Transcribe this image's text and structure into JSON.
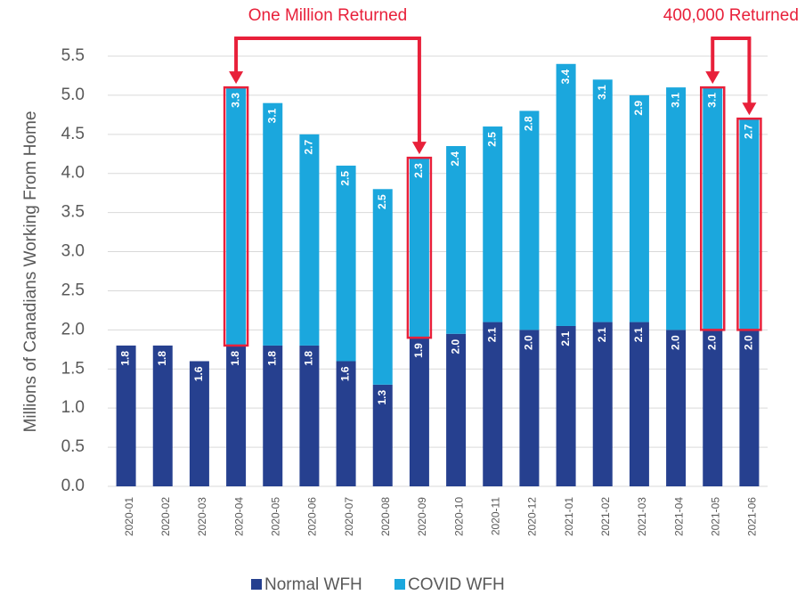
{
  "chart_data": {
    "type": "stacked_bar",
    "y_axis_label": "Millions of Canadians Working From Home",
    "categories": [
      "2020-01",
      "2020-02",
      "2020-03",
      "2020-04",
      "2020-05",
      "2020-06",
      "2020-07",
      "2020-08",
      "2020-09",
      "2020-10",
      "2020-11",
      "2020-12",
      "2021-01",
      "2021-02",
      "2021-03",
      "2021-04",
      "2021-05",
      "2021-06"
    ],
    "series": [
      {
        "name": "Normal WFH",
        "color": "#26408f",
        "values": [
          1.8,
          1.8,
          1.6,
          1.8,
          1.8,
          1.8,
          1.6,
          1.3,
          1.9,
          1.95,
          2.1,
          2.0,
          2.05,
          2.1,
          2.1,
          2.0,
          2.0,
          2.0
        ],
        "value_labels": [
          "1.8",
          "1.8",
          "1.6",
          "1.8",
          "1.8",
          "1.8",
          "1.6",
          "1.3",
          "1.9",
          "2.0",
          "2.1",
          "2.0",
          "2.1",
          "2.1",
          "2.1",
          "2.0",
          "2.0",
          "2.0"
        ]
      },
      {
        "name": "COVID WFH",
        "color": "#1ba7dd",
        "values": [
          null,
          null,
          null,
          3.3,
          3.1,
          2.7,
          2.5,
          2.5,
          2.3,
          2.4,
          2.5,
          2.8,
          3.35,
          3.1,
          2.9,
          3.1,
          3.1,
          2.7
        ],
        "value_labels": [
          null,
          null,
          null,
          "3.3",
          "3.1",
          "2.7",
          "2.5",
          "2.5",
          "2.3",
          "2.4",
          "2.5",
          "2.8",
          "3.4",
          "3.1",
          "2.9",
          "3.1",
          "3.1",
          "2.7"
        ]
      }
    ],
    "ylim": [
      0,
      5.5
    ],
    "yticks": [
      {
        "value": 0,
        "label": "0.0"
      },
      0.5,
      {
        "value": 1,
        "label": "1.0"
      },
      1.5,
      {
        "value": 2,
        "label": "2.0"
      },
      2.5,
      {
        "value": 3,
        "label": "3.0"
      },
      3.5,
      {
        "value": 4,
        "label": "4.0"
      },
      4.5,
      {
        "value": 5,
        "label": "5.0"
      },
      5.5
    ],
    "grid": true,
    "legend": "bottom",
    "annotations": [
      {
        "text": "One Million Returned",
        "categories": [
          "2020-04",
          "2020-09"
        ],
        "color": "#e8203a"
      },
      {
        "text": "400,000 Returned",
        "categories": [
          "2021-05",
          "2021-06"
        ],
        "color": "#e8203a"
      }
    ]
  }
}
